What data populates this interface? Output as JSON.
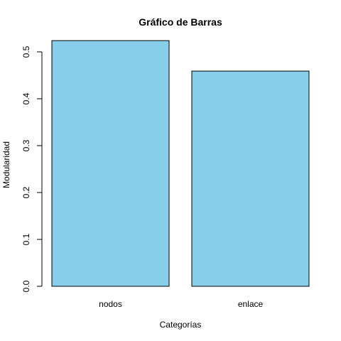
{
  "chart_data": {
    "type": "bar",
    "title": "Gráfico de Barras",
    "xlabel": "Categorías",
    "ylabel": "Modularidad",
    "categories": [
      "nodos",
      "enlace"
    ],
    "values": [
      0.524,
      0.459
    ],
    "ylim": [
      0,
      0.5
    ],
    "yticks": [
      "0.0",
      "0.1",
      "0.2",
      "0.3",
      "0.4",
      "0.5"
    ],
    "grid": false,
    "bar_color": "#87CEEB",
    "border_color": "#000000"
  }
}
